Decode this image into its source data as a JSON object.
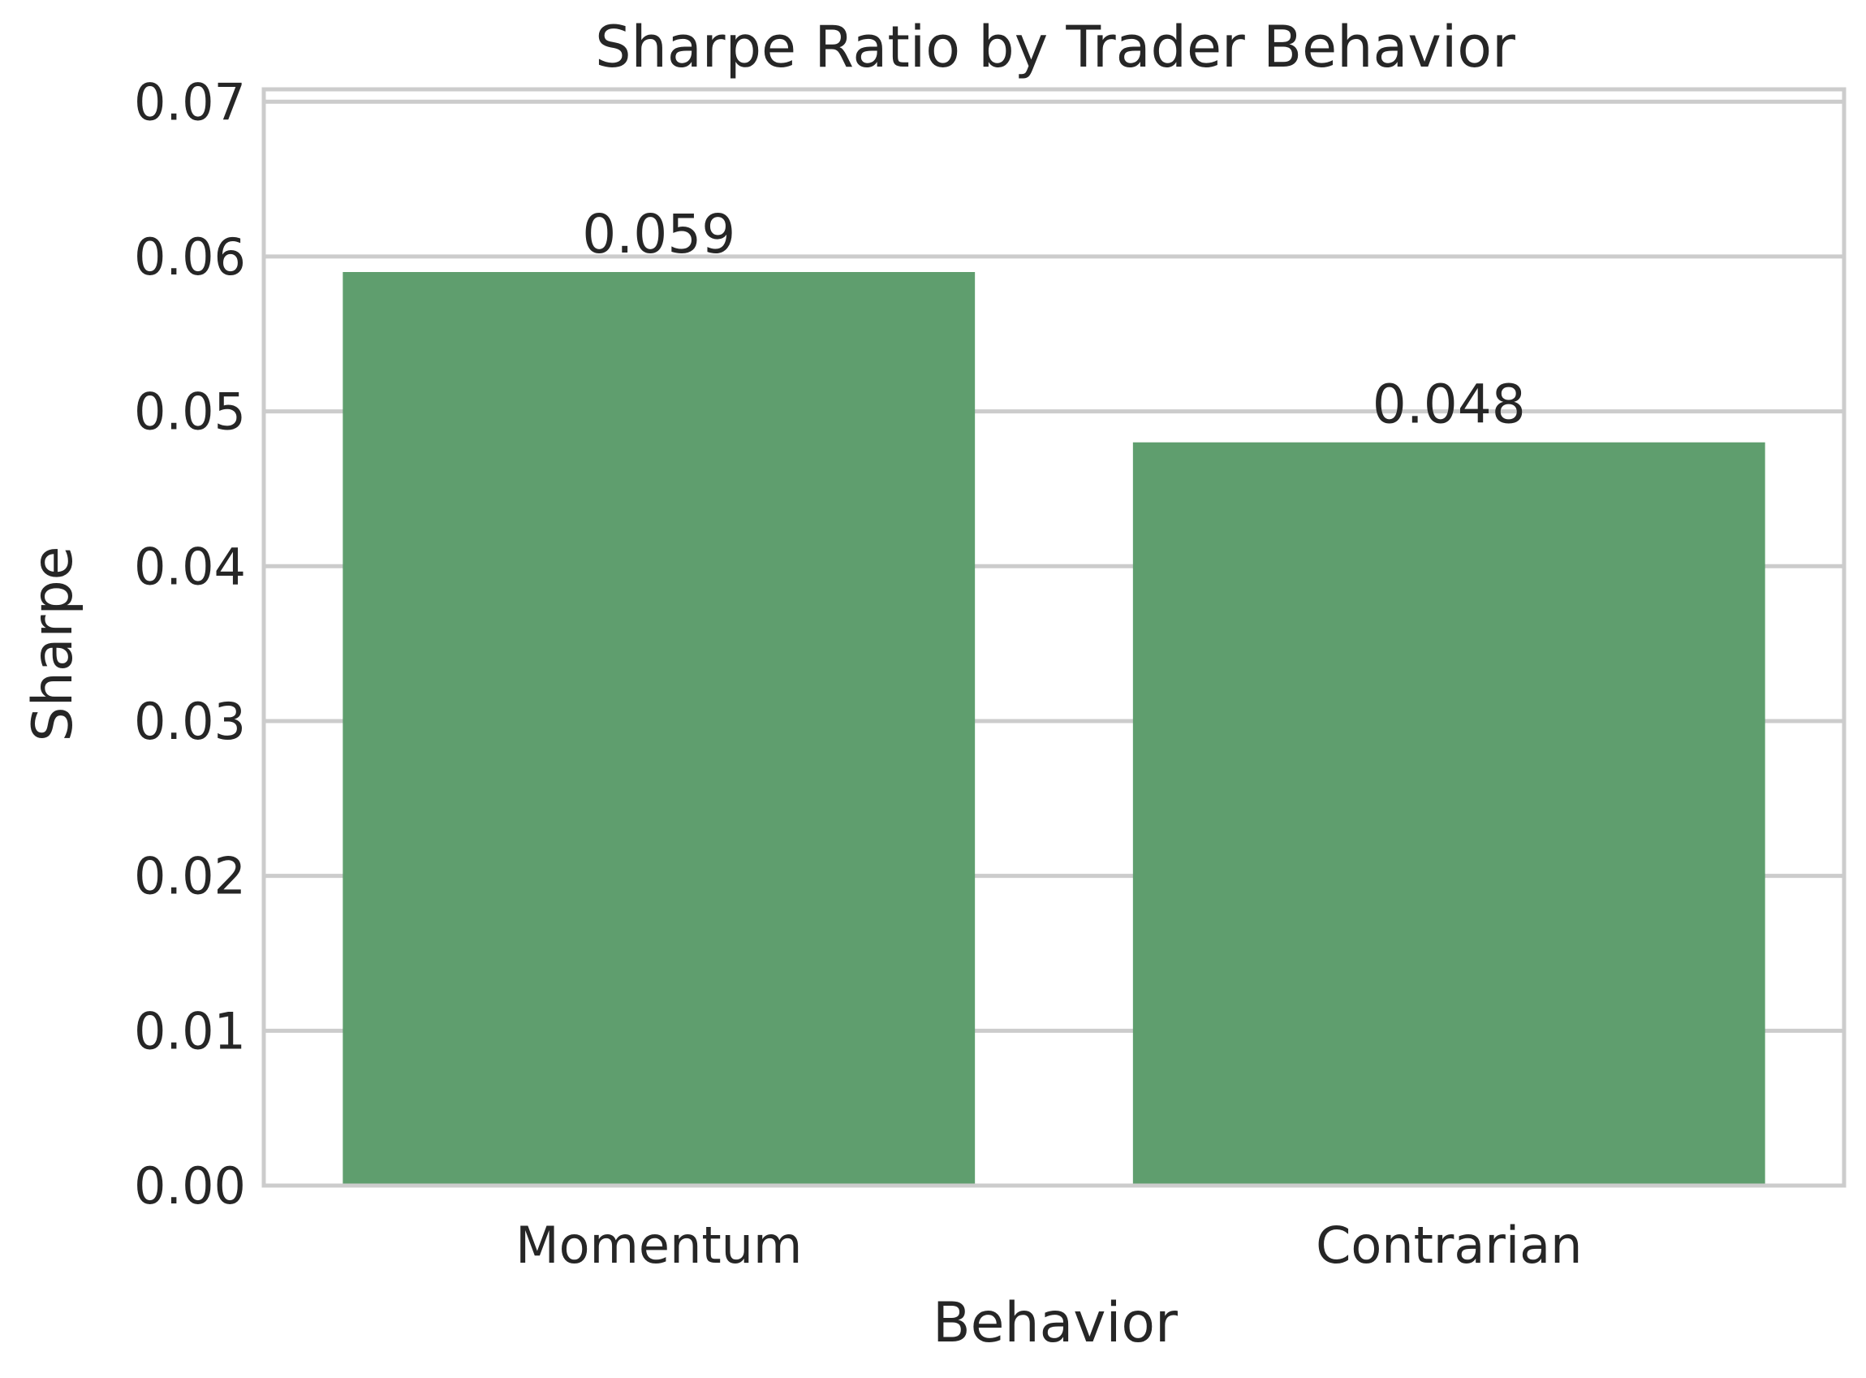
{
  "chart_data": {
    "type": "bar",
    "title": "Sharpe Ratio by Trader Behavior",
    "xlabel": "Behavior",
    "ylabel": "Sharpe",
    "categories": [
      "Momentum",
      "Contrarian"
    ],
    "values": [
      0.059,
      0.048
    ],
    "data_labels": [
      "0.059",
      "0.048"
    ],
    "ylim": [
      0,
      0.0708
    ],
    "yticks": [
      0.0,
      0.01,
      0.02,
      0.03,
      0.04,
      0.05,
      0.06,
      0.07
    ],
    "ytick_labels": [
      "0.00",
      "0.01",
      "0.02",
      "0.03",
      "0.04",
      "0.05",
      "0.06",
      "0.07"
    ],
    "grid": "horizontal",
    "legend": "none",
    "colors": {
      "bar": "#5f9e6e",
      "grid": "#cccccc",
      "frame": "#cccccc",
      "text": "#262626",
      "background": "#ffffff"
    }
  }
}
